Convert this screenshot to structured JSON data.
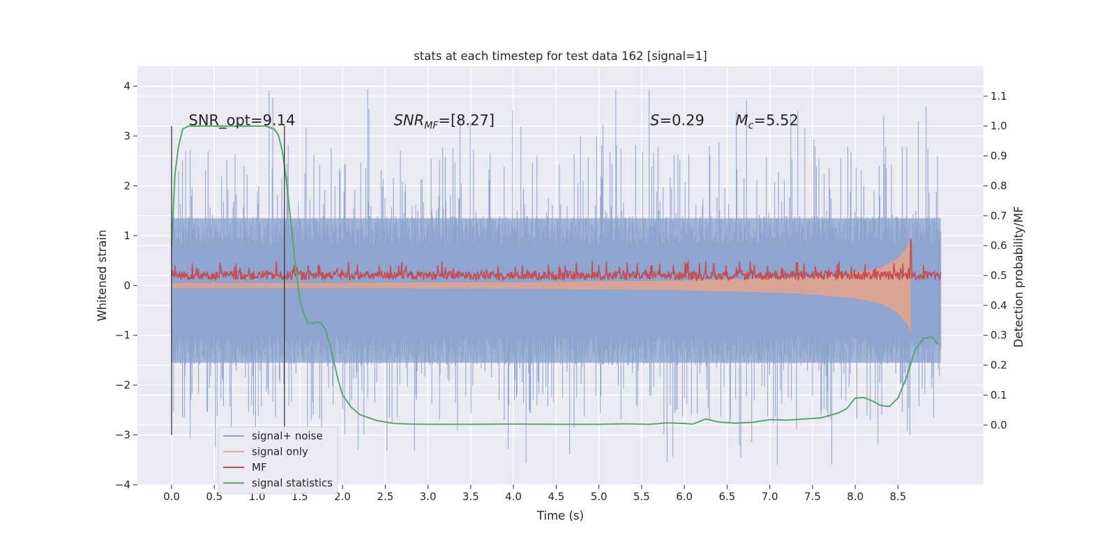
{
  "chart_data": {
    "type": "line",
    "title": "stats at each timestep for test data 162 [signal=1]",
    "xlabel": "Time (s)",
    "ylabel_left": "Whitened strain",
    "ylabel_right": "Detection probability/MF",
    "xlim": [
      -0.4,
      9.5
    ],
    "ylim_left": [
      -4.0,
      4.4
    ],
    "ylim_right": [
      -0.2,
      1.2
    ],
    "x_ticks": [
      0.0,
      0.5,
      1.0,
      1.5,
      2.0,
      2.5,
      3.0,
      3.5,
      4.0,
      4.5,
      5.0,
      5.5,
      6.0,
      6.5,
      7.0,
      7.5,
      8.0,
      8.5
    ],
    "x_tick_labels": [
      "0.0",
      "0.5",
      "1.0",
      "1.5",
      "2.0",
      "2.5",
      "3.0",
      "3.5",
      "4.0",
      "4.5",
      "5.0",
      "5.5",
      "6.0",
      "6.5",
      "7.0",
      "7.5",
      "8.0",
      "8.5"
    ],
    "y_ticks_left": [
      4,
      3,
      2,
      1,
      0,
      -1,
      -2,
      -3,
      -4
    ],
    "y_tick_labels_left": [
      "4",
      "3",
      "2",
      "1",
      "0",
      "−1",
      "−2",
      "−3",
      "−4"
    ],
    "y_ticks_right": [
      1.1,
      1.0,
      0.9,
      0.8,
      0.7,
      0.6,
      0.5,
      0.4,
      0.3,
      0.2,
      0.1,
      0.0
    ],
    "y_tick_labels_right": [
      "1.1",
      "1.0",
      "0.9",
      "0.8",
      "0.7",
      "0.6",
      "0.5",
      "0.4",
      "0.3",
      "0.2",
      "0.1",
      "0.0"
    ],
    "grid": true,
    "legend_position": "lower-left",
    "series": [
      {
        "name": "signal+ noise",
        "axis": "left",
        "color": "#8ca3cf",
        "x_range": [
          0.0,
          9.0
        ],
        "typical_range": [
          -1.6,
          1.4
        ],
        "peak_range": [
          -3.6,
          4.0
        ]
      },
      {
        "name": "signal only",
        "axis": "left",
        "color": "#e8a388",
        "x_range": [
          0.0,
          8.65
        ],
        "envelope": [
          [
            0.0,
            0.05
          ],
          [
            2.0,
            0.05
          ],
          [
            3.0,
            0.06
          ],
          [
            4.0,
            0.06
          ],
          [
            5.0,
            0.08
          ],
          [
            6.0,
            0.1
          ],
          [
            7.0,
            0.14
          ],
          [
            7.5,
            0.18
          ],
          [
            8.0,
            0.26
          ],
          [
            8.3,
            0.36
          ],
          [
            8.5,
            0.55
          ],
          [
            8.6,
            0.75
          ],
          [
            8.65,
            0.95
          ]
        ]
      },
      {
        "name": "MF",
        "axis": "right",
        "color": "#c44e52",
        "x_range": [
          0.0,
          9.0
        ],
        "baseline": 0.5,
        "typical_range": [
          0.48,
          0.53
        ],
        "max_spike": [
          8.65,
          0.62
        ]
      },
      {
        "name": "signal statistics",
        "axis": "right",
        "color": "#55a868",
        "x": [
          0.0,
          0.04,
          0.08,
          0.13,
          0.2,
          0.3,
          0.5,
          0.8,
          1.0,
          1.1,
          1.2,
          1.25,
          1.3,
          1.35,
          1.4,
          1.45,
          1.5,
          1.55,
          1.6,
          1.65,
          1.7,
          1.75,
          1.8,
          1.85,
          1.9,
          1.95,
          2.0,
          2.1,
          2.2,
          2.4,
          2.6,
          2.8,
          3.0,
          3.5,
          4.0,
          4.5,
          5.0,
          5.3,
          5.6,
          5.8,
          6.0,
          6.1,
          6.25,
          6.4,
          6.6,
          6.8,
          7.0,
          7.2,
          7.4,
          7.6,
          7.8,
          7.9,
          8.0,
          8.1,
          8.2,
          8.3,
          8.4,
          8.5,
          8.6,
          8.7,
          8.8,
          8.9,
          8.97
        ],
        "y": [
          0.6,
          0.84,
          0.93,
          0.99,
          1.0,
          1.0,
          1.0,
          1.0,
          1.0,
          1.0,
          0.99,
          0.97,
          0.91,
          0.8,
          0.67,
          0.53,
          0.42,
          0.37,
          0.34,
          0.34,
          0.345,
          0.34,
          0.32,
          0.27,
          0.21,
          0.15,
          0.1,
          0.06,
          0.035,
          0.015,
          0.005,
          0.003,
          0.002,
          0.002,
          0.003,
          0.002,
          0.002,
          0.004,
          0.002,
          0.007,
          0.005,
          0.003,
          0.02,
          0.01,
          0.006,
          0.009,
          0.018,
          0.016,
          0.02,
          0.024,
          0.04,
          0.055,
          0.09,
          0.092,
          0.08,
          0.065,
          0.062,
          0.09,
          0.16,
          0.25,
          0.29,
          0.295,
          0.27
        ]
      }
    ],
    "vertical_markers": [
      {
        "x": 0.0,
        "ymin": -3.0,
        "ymax": 3.2,
        "color": "#333333"
      },
      {
        "x": 1.32,
        "ymin": -3.0,
        "ymax": 3.2,
        "color": "#333333"
      }
    ],
    "annotations": [
      {
        "text": "SNR_opt=9.14",
        "x": 0.2,
        "y": 3.2,
        "style": "plain"
      },
      {
        "symbol": "SNR",
        "sub": "MF",
        "value": "=[8.27]",
        "x": 2.6,
        "y": 3.2,
        "style": "math"
      },
      {
        "symbol": "S",
        "sub": "",
        "value": "=0.29",
        "x": 5.6,
        "y": 3.2,
        "style": "math"
      },
      {
        "symbol": "M",
        "sub": "c",
        "value": "=5.52",
        "x": 6.6,
        "y": 3.2,
        "style": "math"
      }
    ]
  }
}
